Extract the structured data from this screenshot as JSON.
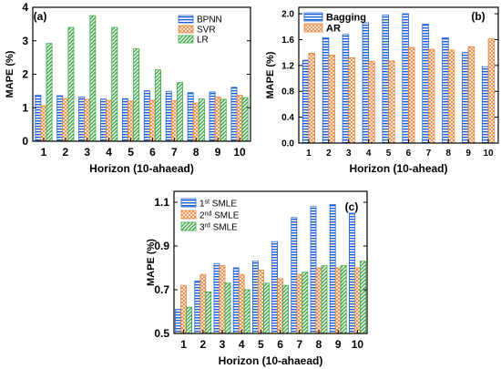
{
  "chart_data": [
    {
      "type": "bar",
      "panel_label": "(a)",
      "xlabel": "Horizon (10-ahaead)",
      "ylabel": "MAPE (%)",
      "categories": [
        "1",
        "2",
        "3",
        "4",
        "5",
        "6",
        "7",
        "8",
        "9",
        "10"
      ],
      "ylim": [
        0,
        4
      ],
      "yticks": [
        "0",
        "1",
        "2",
        "3",
        "4"
      ],
      "legend_position": "top-right",
      "series": [
        {
          "name": "BPNN",
          "color": "#1f5fd6",
          "pattern": "horizontal-stripes",
          "values": [
            1.38,
            1.36,
            1.32,
            1.26,
            1.27,
            1.51,
            1.49,
            1.45,
            1.47,
            1.61
          ]
        },
        {
          "name": "SVR",
          "color": "#e8823a",
          "pattern": "crosshatch",
          "values": [
            1.06,
            1.28,
            1.25,
            1.22,
            1.2,
            1.22,
            1.21,
            1.14,
            1.32,
            1.37
          ]
        },
        {
          "name": "LR",
          "color": "#3aa845",
          "pattern": "diagonal-stripes",
          "values": [
            2.92,
            3.4,
            3.75,
            3.4,
            2.76,
            2.13,
            1.75,
            1.26,
            1.25,
            1.3
          ]
        }
      ]
    },
    {
      "type": "bar",
      "panel_label": "(b)",
      "xlabel": "Horizon (10-ahead)",
      "ylabel": "MAPE (%)",
      "categories": [
        "1",
        "2",
        "3",
        "4",
        "5",
        "6",
        "7",
        "8",
        "9",
        "10"
      ],
      "ylim": [
        0,
        2.1
      ],
      "yticks": [
        "0.0",
        "0.4",
        "0.8",
        "1.2",
        "1.6",
        "2.0"
      ],
      "legend_position": "top-left",
      "series": [
        {
          "name": "Bagging",
          "color": "#1f5fd6",
          "pattern": "horizontal-stripes",
          "values": [
            1.28,
            1.63,
            1.68,
            1.86,
            1.98,
            2.0,
            1.84,
            1.63,
            1.4,
            1.18
          ]
        },
        {
          "name": "AR",
          "color": "#e8823a",
          "pattern": "crosshatch",
          "values": [
            1.39,
            1.36,
            1.32,
            1.26,
            1.27,
            1.48,
            1.45,
            1.44,
            1.49,
            1.61
          ]
        }
      ]
    },
    {
      "type": "bar",
      "panel_label": "(c)",
      "xlabel": "Horizon (10-ahaead)",
      "ylabel": "MAPE (%)",
      "categories": [
        "1",
        "2",
        "3",
        "4",
        "5",
        "6",
        "7",
        "8",
        "9",
        "10"
      ],
      "ylim": [
        0.5,
        1.15
      ],
      "yticks": [
        "0.5",
        "0.7",
        "0.9",
        "1.1"
      ],
      "legend_position": "top-left",
      "series": [
        {
          "name": "1st SMLE",
          "name_base": "1",
          "name_sup": "st",
          "name_rest": " SMLE",
          "color": "#1f5fd6",
          "pattern": "horizontal-stripes",
          "values": [
            0.61,
            0.74,
            0.82,
            0.8,
            0.83,
            0.92,
            1.03,
            1.08,
            1.09,
            1.05
          ]
        },
        {
          "name": "2nd SMLE",
          "name_base": "2",
          "name_sup": "nd",
          "name_rest": " SMLE",
          "color": "#e8823a",
          "pattern": "crosshatch",
          "values": [
            0.72,
            0.77,
            0.81,
            0.77,
            0.79,
            0.75,
            0.77,
            0.8,
            0.8,
            0.8
          ]
        },
        {
          "name": "3rd SMLE",
          "name_base": "3",
          "name_sup": "rd",
          "name_rest": " SMLE",
          "color": "#3aa845",
          "pattern": "diagonal-stripes",
          "values": [
            0.62,
            0.69,
            0.73,
            0.7,
            0.73,
            0.72,
            0.78,
            0.81,
            0.81,
            0.83
          ]
        }
      ]
    }
  ]
}
